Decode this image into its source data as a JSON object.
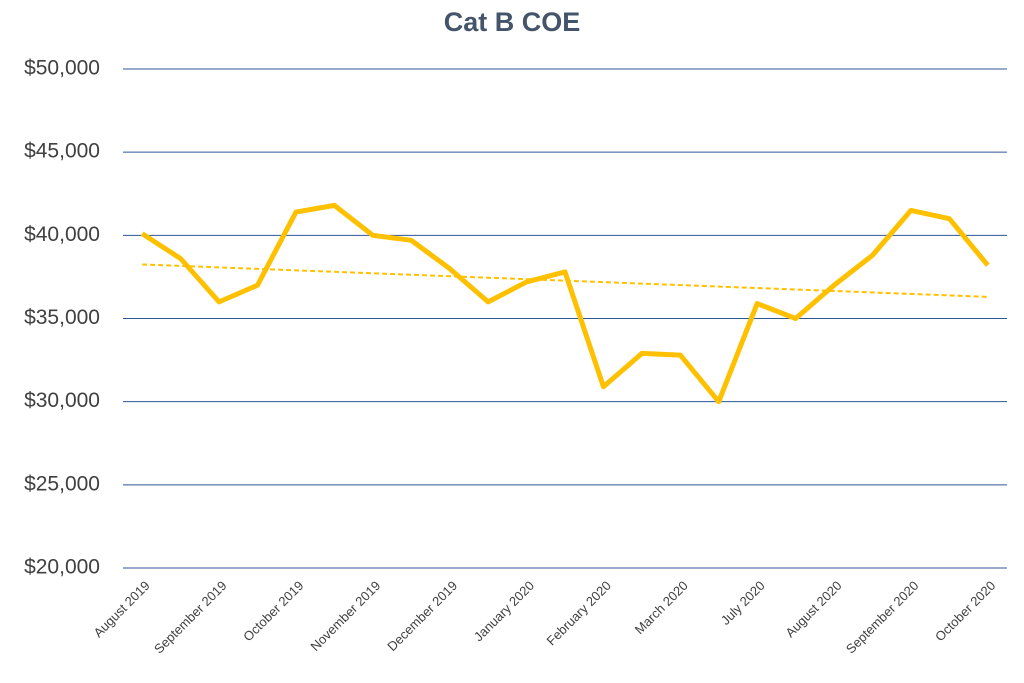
{
  "chart_data": {
    "type": "line",
    "title": "Cat B COE",
    "categories": [
      "August 2019",
      null,
      "September 2019",
      null,
      "October 2019",
      null,
      "November 2019",
      null,
      "December 2019",
      null,
      "January 2020",
      null,
      "February 2020",
      null,
      "March 2020",
      null,
      "July 2020",
      null,
      "August 2020",
      null,
      "September 2020",
      null,
      "October 2020"
    ],
    "series": [
      {
        "color": "#ffc000",
        "values": [
          40100,
          38600,
          36000,
          37000,
          41400,
          41800,
          40000,
          39700,
          38000,
          36000,
          37200,
          37800,
          30900,
          32900,
          32800,
          30000,
          35900,
          35000,
          37000,
          38800,
          41500,
          41000,
          38200
        ]
      }
    ],
    "trendline": {
      "start": 38250,
      "end": 36300,
      "color": "#ffc000",
      "style": "dashed"
    },
    "ylim": [
      20000,
      50000
    ],
    "yticks": [
      {
        "value": 20000,
        "label": "$20,000"
      },
      {
        "value": 25000,
        "label": "$25,000"
      },
      {
        "value": 30000,
        "label": "$30,000"
      },
      {
        "value": 35000,
        "label": "$35,000"
      },
      {
        "value": 40000,
        "label": "$40,000"
      },
      {
        "value": 45000,
        "label": "$45,000"
      },
      {
        "value": 50000,
        "label": "$50,000"
      }
    ],
    "grid": true,
    "grid_color": "#2f5597"
  }
}
